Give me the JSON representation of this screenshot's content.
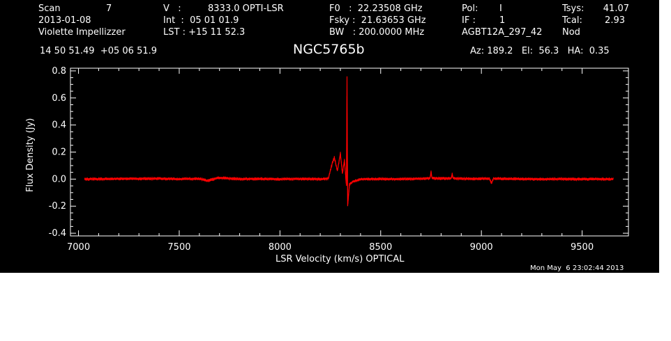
{
  "header": {
    "scan_label": "Scan",
    "scan_value": "7",
    "date": "2013-01-08",
    "observer": "Violette Impellizzer",
    "v_label": "V   :",
    "v_value": "8333.0 OPTI-LSR",
    "int_line": "Int  :  05 01 01.9",
    "lst_line": "LST : +15 11 52.3",
    "f0_line": "F0   :  22.23508 GHz",
    "fsky_line": "Fsky :  21.63653 GHz",
    "bw_line": "BW   : 200.0000 MHz",
    "pol_label": "Pol:",
    "pol_value": "I",
    "if_label": "IF :",
    "if_value": "1",
    "project": "AGBT12A_297_42",
    "tsys_label": "Tsys:",
    "tsys_value": "41.07",
    "tcal_label": "Tcal:",
    "tcal_value": "2.93",
    "mode": "Nod",
    "coords": "14 50 51.49  +05 06 51.9",
    "az_el_ha": "Az: 189.2   El:  56.3   HA:  0.35",
    "timestamp": "Mon May  6 23:02:44 2013"
  },
  "colors": {
    "background": "#000000",
    "axes": "#ffffff",
    "series": "#ff0000"
  },
  "chart_data": {
    "type": "line",
    "title": "NGC5765b",
    "xlabel": "LSR Velocity (km/s) OPTICAL",
    "ylabel": "Flux Density (Jy)",
    "xlim": [
      6960,
      9730
    ],
    "ylim": [
      -0.42,
      0.82
    ],
    "xticks": [
      7000,
      7500,
      8000,
      8500,
      9000,
      9500
    ],
    "yticks": [
      -0.4,
      -0.2,
      0.0,
      0.2,
      0.4,
      0.6,
      0.8
    ],
    "ytick_labels": [
      "-0.4",
      "-0.2",
      "0.0",
      "0.2",
      "0.4",
      "0.6",
      "0.8"
    ],
    "grid": false,
    "legend": "none",
    "series": [
      {
        "x": [
          7030,
          7200,
          7400,
          7500,
          7600,
          7640,
          7700,
          7800,
          7900,
          8000,
          8100,
          8200,
          8240,
          8260,
          8270,
          8285,
          8300,
          8310,
          8320,
          8330,
          8333,
          8336,
          8345,
          8360,
          8400,
          8500,
          8600,
          8700,
          8745,
          8750,
          8755,
          8800,
          8850,
          8855,
          8860,
          8950,
          9040,
          9050,
          9060,
          9150,
          9300,
          9500,
          9655
        ],
        "y": [
          0.0,
          0.002,
          0.004,
          0.0,
          0.003,
          -0.012,
          0.01,
          0.0,
          0.002,
          0.0,
          0.001,
          0.0,
          0.004,
          0.12,
          0.16,
          0.06,
          0.19,
          0.04,
          0.14,
          -0.05,
          0.76,
          -0.2,
          -0.04,
          -0.02,
          0.0,
          0.001,
          0.0,
          0.003,
          0.006,
          0.055,
          0.006,
          0.004,
          0.005,
          0.04,
          0.006,
          0.002,
          0.004,
          -0.03,
          0.005,
          0.002,
          0.0,
          0.0,
          0.0
        ]
      }
    ]
  }
}
